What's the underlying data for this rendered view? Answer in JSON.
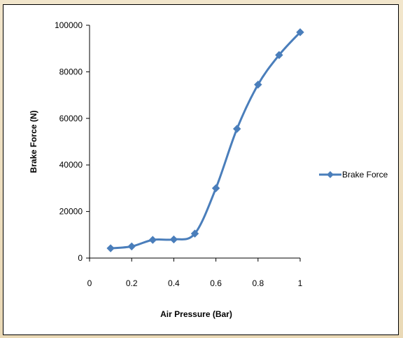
{
  "chart_data": {
    "type": "line",
    "xlabel": "Air Pressure (Bar)",
    "ylabel": "Brake Force (N)",
    "xlim": [
      0,
      1
    ],
    "ylim": [
      0,
      100000
    ],
    "x_ticks": [
      "0",
      "0.2",
      "0.4",
      "0.6",
      "0.8",
      "1"
    ],
    "y_ticks": [
      "0",
      "20000",
      "40000",
      "60000",
      "80000",
      "100000"
    ],
    "grid": false,
    "legend_position": "right",
    "series": [
      {
        "name": "Brake Force",
        "color": "#4a7ebb",
        "marker": "diamond",
        "smooth": true,
        "x": [
          0.1,
          0.2,
          0.3,
          0.4,
          0.5,
          0.6,
          0.7,
          0.8,
          0.9,
          1.0
        ],
        "y": [
          4200,
          5000,
          7800,
          8000,
          10500,
          30000,
          55500,
          74500,
          87200,
          97000
        ]
      }
    ]
  }
}
